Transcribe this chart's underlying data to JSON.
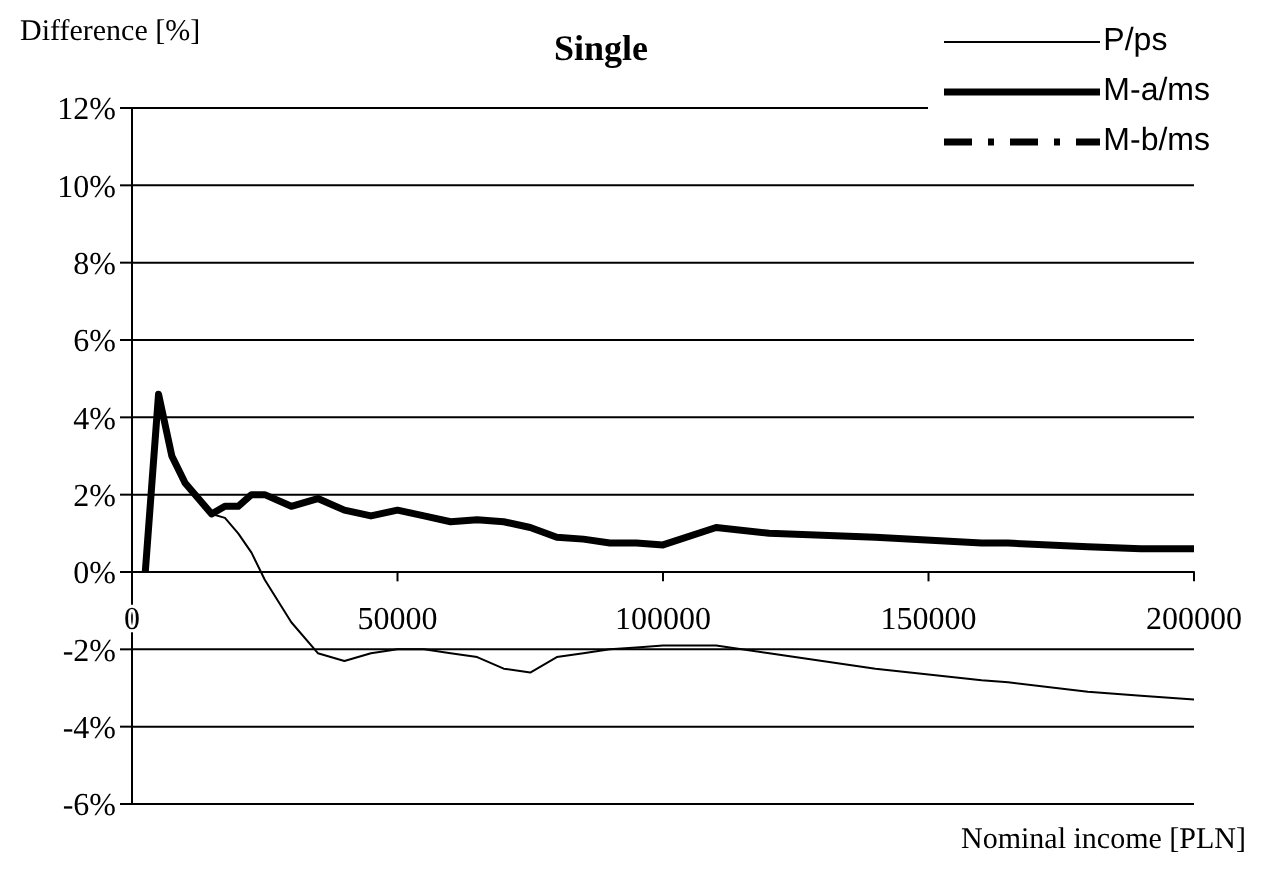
{
  "chart_data": {
    "type": "line",
    "title": "Single",
    "xlabel": "Nominal income [PLN]",
    "ylabel": "Difference [%]",
    "x": [
      2500,
      5000,
      7500,
      10000,
      12500,
      15000,
      17500,
      20000,
      22500,
      25000,
      30000,
      35000,
      40000,
      45000,
      50000,
      55000,
      60000,
      65000,
      70000,
      75000,
      80000,
      85000,
      90000,
      95000,
      100000,
      110000,
      120000,
      140000,
      160000,
      165000,
      180000,
      190000,
      200000
    ],
    "series": [
      {
        "name": "P/ps",
        "color": "#000000",
        "line_style": "solid",
        "values": [
          0,
          4.6,
          3.0,
          2.3,
          1.9,
          1.5,
          1.4,
          1.0,
          0.5,
          -0.2,
          -1.3,
          -2.1,
          -2.3,
          -2.1,
          -2.0,
          -2.0,
          -2.1,
          -2.2,
          -2.5,
          -2.6,
          -2.2,
          -2.1,
          -2.0,
          -1.95,
          -1.9,
          -1.9,
          -2.1,
          -2.5,
          -2.8,
          -2.85,
          -3.1,
          -3.2,
          -3.3
        ]
      },
      {
        "name": "M-a/ms",
        "color": "#000000",
        "line_style": "solid",
        "values": [
          0,
          4.6,
          3.0,
          2.3,
          1.9,
          1.5,
          1.7,
          1.7,
          2.0,
          2.0,
          1.7,
          1.9,
          1.6,
          1.45,
          1.6,
          1.45,
          1.3,
          1.35,
          1.3,
          1.15,
          0.9,
          0.85,
          0.75,
          0.75,
          0.7,
          1.15,
          1.0,
          0.9,
          0.75,
          0.75,
          0.65,
          0.6,
          0.6
        ]
      },
      {
        "name": "M-b/ms",
        "color": "#000000",
        "line_style": "dashed",
        "values": [
          null,
          null,
          null,
          null,
          null,
          null,
          null,
          null,
          null,
          null,
          null,
          null,
          null,
          null,
          null,
          null,
          null,
          null,
          null,
          null,
          null,
          null,
          null,
          null,
          null,
          null,
          null,
          null,
          null,
          null,
          null,
          null,
          null
        ]
      }
    ],
    "xlim": [
      0,
      200000
    ],
    "xticks": [
      0,
      50000,
      100000,
      150000,
      200000
    ],
    "ylim": [
      -6,
      12
    ],
    "yticks": [
      {
        "value": -6,
        "label": "-6%"
      },
      {
        "value": -4,
        "label": "-4%"
      },
      {
        "value": -2,
        "label": "-2%"
      },
      {
        "value": 0,
        "label": "0%"
      },
      {
        "value": 2,
        "label": "2%"
      },
      {
        "value": 4,
        "label": "4%"
      },
      {
        "value": 6,
        "label": "6%"
      },
      {
        "value": 8,
        "label": "8%"
      },
      {
        "value": 10,
        "label": "10%"
      },
      {
        "value": 12,
        "label": "12%"
      }
    ],
    "grid": "y",
    "legend": "top right",
    "marker": "none"
  }
}
